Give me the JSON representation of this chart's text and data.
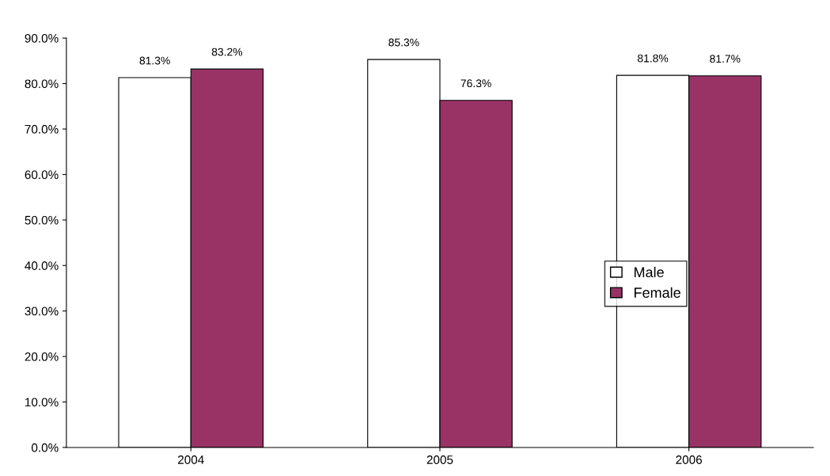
{
  "chart_data": {
    "type": "bar",
    "categories": [
      "2004",
      "2005",
      "2006"
    ],
    "series": [
      {
        "name": "Male",
        "color": "#ffffff",
        "values": [
          81.3,
          85.3,
          81.8
        ],
        "value_labels": [
          "81.3%",
          "85.3%",
          "81.8%"
        ]
      },
      {
        "name": "Female",
        "color": "#993366",
        "values": [
          83.2,
          76.3,
          81.7
        ],
        "value_labels": [
          "83.2%",
          "76.3%",
          "81.7%"
        ]
      }
    ],
    "ylim": [
      0,
      90
    ],
    "yticks": [
      {
        "value": 0,
        "label": "0.0%"
      },
      {
        "value": 10,
        "label": "10.0%"
      },
      {
        "value": 20,
        "label": "20.0%"
      },
      {
        "value": 30,
        "label": "30.0%"
      },
      {
        "value": 40,
        "label": "40.0%"
      },
      {
        "value": 50,
        "label": "50.0%"
      },
      {
        "value": 60,
        "label": "60.0%"
      },
      {
        "value": 70,
        "label": "70.0%"
      },
      {
        "value": 80,
        "label": "80.0%"
      },
      {
        "value": 90,
        "label": "90.0%"
      }
    ],
    "grid": false,
    "legend": "right"
  }
}
